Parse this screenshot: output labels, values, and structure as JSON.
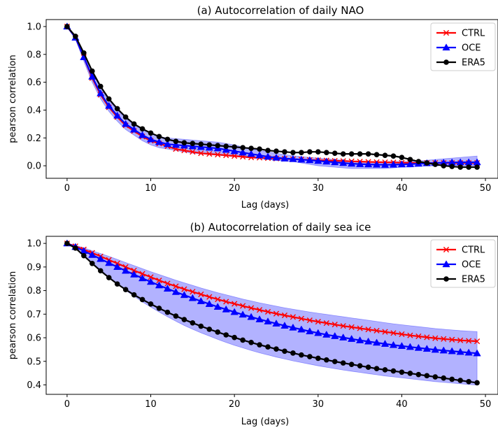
{
  "chart_data": [
    {
      "type": "line",
      "title": "(a) Autocorrelation of daily NAO",
      "xlabel": "Lag (days)",
      "ylabel": "pearson correlation",
      "xlim": [
        -2.5,
        51.5
      ],
      "ylim": [
        -0.09,
        1.05
      ],
      "xticks": [
        0,
        10,
        20,
        30,
        40,
        50
      ],
      "xtick_labels": [
        "0",
        "10",
        "20",
        "30",
        "40",
        "50"
      ],
      "yticks": [
        0.0,
        0.2,
        0.4,
        0.6,
        0.8,
        1.0
      ],
      "ytick_labels": [
        "0.0",
        "0.2",
        "0.4",
        "0.6",
        "0.8",
        "1.0"
      ],
      "grid": false,
      "legend": "top-right",
      "x": [
        0,
        1,
        2,
        3,
        4,
        5,
        6,
        7,
        8,
        9,
        10,
        11,
        12,
        13,
        14,
        15,
        16,
        17,
        18,
        19,
        20,
        21,
        22,
        23,
        24,
        25,
        26,
        27,
        28,
        29,
        30,
        31,
        32,
        33,
        34,
        35,
        36,
        37,
        38,
        39,
        40,
        41,
        42,
        43,
        44,
        45,
        46,
        47,
        48,
        49
      ],
      "series": [
        {
          "name": "CTRL",
          "color": "#ff0000",
          "marker": "x",
          "values": [
            1.0,
            0.92,
            0.78,
            0.63,
            0.51,
            0.42,
            0.35,
            0.29,
            0.25,
            0.21,
            0.18,
            0.16,
            0.14,
            0.12,
            0.11,
            0.1,
            0.09,
            0.085,
            0.08,
            0.075,
            0.07,
            0.065,
            0.06,
            0.058,
            0.055,
            0.052,
            0.05,
            0.047,
            0.045,
            0.042,
            0.04,
            0.038,
            0.036,
            0.034,
            0.032,
            0.03,
            0.028,
            0.026,
            0.025,
            0.024,
            0.022,
            0.021,
            0.02,
            0.02,
            0.02,
            0.02,
            0.02,
            0.02,
            0.02,
            0.02
          ]
        },
        {
          "name": "OCE",
          "color": "#0000ff",
          "marker": "triangle",
          "values": [
            1.0,
            0.92,
            0.78,
            0.64,
            0.52,
            0.43,
            0.36,
            0.3,
            0.26,
            0.22,
            0.19,
            0.17,
            0.155,
            0.15,
            0.145,
            0.14,
            0.135,
            0.13,
            0.125,
            0.115,
            0.105,
            0.095,
            0.085,
            0.075,
            0.065,
            0.058,
            0.052,
            0.048,
            0.044,
            0.04,
            0.035,
            0.03,
            0.025,
            0.02,
            0.015,
            0.012,
            0.01,
            0.008,
            0.007,
            0.008,
            0.01,
            0.012,
            0.015,
            0.018,
            0.02,
            0.022,
            0.024,
            0.025,
            0.025,
            0.025
          ]
        },
        {
          "name": "ERA5",
          "color": "#000000",
          "marker": "circle",
          "values": [
            1.0,
            0.93,
            0.81,
            0.68,
            0.57,
            0.48,
            0.41,
            0.35,
            0.3,
            0.265,
            0.235,
            0.21,
            0.19,
            0.175,
            0.165,
            0.16,
            0.155,
            0.15,
            0.145,
            0.14,
            0.135,
            0.13,
            0.125,
            0.12,
            0.11,
            0.105,
            0.1,
            0.095,
            0.095,
            0.1,
            0.1,
            0.095,
            0.09,
            0.085,
            0.085,
            0.085,
            0.085,
            0.08,
            0.075,
            0.07,
            0.06,
            0.045,
            0.03,
            0.02,
            0.01,
            0.0,
            -0.005,
            -0.01,
            -0.01,
            -0.01
          ]
        }
      ],
      "band": {
        "color": "#0000ff",
        "lower": [
          1.0,
          0.91,
          0.75,
          0.6,
          0.48,
          0.39,
          0.32,
          0.26,
          0.22,
          0.18,
          0.15,
          0.13,
          0.12,
          0.11,
          0.1,
          0.09,
          0.085,
          0.08,
          0.075,
          0.07,
          0.065,
          0.06,
          0.055,
          0.05,
          0.045,
          0.04,
          0.035,
          0.03,
          0.02,
          0.01,
          0.0,
          -0.005,
          -0.01,
          -0.015,
          -0.02,
          -0.02,
          -0.02,
          -0.02,
          -0.02,
          -0.015,
          -0.01,
          -0.01,
          -0.005,
          0.0,
          0.0,
          0.005,
          0.005,
          0.0,
          0.0,
          0.0
        ],
        "upper": [
          1.0,
          0.93,
          0.8,
          0.67,
          0.56,
          0.47,
          0.4,
          0.34,
          0.295,
          0.26,
          0.23,
          0.21,
          0.2,
          0.195,
          0.19,
          0.185,
          0.18,
          0.175,
          0.17,
          0.16,
          0.15,
          0.135,
          0.12,
          0.11,
          0.1,
          0.09,
          0.08,
          0.072,
          0.066,
          0.06,
          0.055,
          0.05,
          0.045,
          0.04,
          0.035,
          0.03,
          0.03,
          0.03,
          0.03,
          0.03,
          0.03,
          0.03,
          0.035,
          0.04,
          0.045,
          0.05,
          0.055,
          0.06,
          0.065,
          0.07
        ]
      }
    },
    {
      "type": "line",
      "title": "(b) Autocorrelation of daily sea ice",
      "xlabel": "Lag (days)",
      "ylabel": "pearson correlation",
      "xlim": [
        -2.5,
        51.5
      ],
      "ylim": [
        0.36,
        1.03
      ],
      "xticks": [
        0,
        10,
        20,
        30,
        40,
        50
      ],
      "xtick_labels": [
        "0",
        "10",
        "20",
        "30",
        "40",
        "50"
      ],
      "yticks": [
        0.4,
        0.5,
        0.6,
        0.7,
        0.8,
        0.9,
        1.0
      ],
      "ytick_labels": [
        "0.4",
        "0.5",
        "0.6",
        "0.7",
        "0.8",
        "0.9",
        "1.0"
      ],
      "grid": false,
      "legend": "top-right",
      "x": [
        0,
        1,
        2,
        3,
        4,
        5,
        6,
        7,
        8,
        9,
        10,
        11,
        12,
        13,
        14,
        15,
        16,
        17,
        18,
        19,
        20,
        21,
        22,
        23,
        24,
        25,
        26,
        27,
        28,
        29,
        30,
        31,
        32,
        33,
        34,
        35,
        36,
        37,
        38,
        39,
        40,
        41,
        42,
        43,
        44,
        45,
        46,
        47,
        48,
        49
      ],
      "series": [
        {
          "name": "CTRL",
          "color": "#ff0000",
          "marker": "x",
          "values": [
            1.0,
            0.988,
            0.974,
            0.96,
            0.945,
            0.93,
            0.915,
            0.9,
            0.885,
            0.871,
            0.857,
            0.843,
            0.83,
            0.818,
            0.806,
            0.795,
            0.784,
            0.773,
            0.763,
            0.753,
            0.744,
            0.735,
            0.726,
            0.718,
            0.71,
            0.702,
            0.695,
            0.688,
            0.681,
            0.674,
            0.668,
            0.662,
            0.656,
            0.65,
            0.645,
            0.64,
            0.635,
            0.63,
            0.625,
            0.62,
            0.615,
            0.61,
            0.606,
            0.602,
            0.598,
            0.595,
            0.592,
            0.589,
            0.587,
            0.585
          ]
        },
        {
          "name": "OCE",
          "color": "#0000ff",
          "marker": "triangle",
          "values": [
            1.0,
            0.985,
            0.968,
            0.951,
            0.934,
            0.917,
            0.9,
            0.884,
            0.868,
            0.852,
            0.837,
            0.822,
            0.808,
            0.794,
            0.781,
            0.768,
            0.755,
            0.743,
            0.731,
            0.72,
            0.709,
            0.698,
            0.688,
            0.678,
            0.669,
            0.66,
            0.651,
            0.643,
            0.635,
            0.627,
            0.62,
            0.613,
            0.607,
            0.601,
            0.595,
            0.589,
            0.584,
            0.579,
            0.574,
            0.569,
            0.565,
            0.561,
            0.557,
            0.553,
            0.549,
            0.546,
            0.543,
            0.54,
            0.537,
            0.534
          ]
        },
        {
          "name": "ERA5",
          "color": "#000000",
          "marker": "circle",
          "values": [
            1.0,
            0.98,
            0.948,
            0.915,
            0.884,
            0.855,
            0.828,
            0.804,
            0.782,
            0.762,
            0.743,
            0.725,
            0.708,
            0.692,
            0.677,
            0.663,
            0.649,
            0.636,
            0.624,
            0.612,
            0.601,
            0.59,
            0.58,
            0.57,
            0.561,
            0.552,
            0.543,
            0.535,
            0.527,
            0.52,
            0.513,
            0.506,
            0.499,
            0.493,
            0.487,
            0.481,
            0.475,
            0.469,
            0.464,
            0.459,
            0.454,
            0.449,
            0.444,
            0.439,
            0.434,
            0.429,
            0.424,
            0.419,
            0.414,
            0.409
          ]
        }
      ],
      "band": {
        "color": "#0000ff",
        "lower": [
          1.0,
          0.98,
          0.95,
          0.918,
          0.887,
          0.857,
          0.828,
          0.801,
          0.776,
          0.752,
          0.73,
          0.709,
          0.689,
          0.67,
          0.652,
          0.636,
          0.621,
          0.607,
          0.593,
          0.58,
          0.568,
          0.557,
          0.546,
          0.536,
          0.527,
          0.518,
          0.51,
          0.502,
          0.495,
          0.488,
          0.481,
          0.475,
          0.469,
          0.463,
          0.458,
          0.453,
          0.448,
          0.443,
          0.438,
          0.434,
          0.43,
          0.426,
          0.422,
          0.418,
          0.414,
          0.411,
          0.408,
          0.405,
          0.402,
          0.399
        ],
        "upper": [
          1.0,
          0.992,
          0.981,
          0.969,
          0.957,
          0.945,
          0.932,
          0.919,
          0.906,
          0.893,
          0.88,
          0.868,
          0.856,
          0.844,
          0.833,
          0.822,
          0.811,
          0.801,
          0.791,
          0.782,
          0.773,
          0.764,
          0.756,
          0.748,
          0.741,
          0.734,
          0.727,
          0.721,
          0.715,
          0.709,
          0.704,
          0.699,
          0.694,
          0.689,
          0.684,
          0.679,
          0.674,
          0.669,
          0.664,
          0.659,
          0.655,
          0.651,
          0.647,
          0.643,
          0.639,
          0.636,
          0.633,
          0.63,
          0.628,
          0.626
        ]
      }
    }
  ]
}
